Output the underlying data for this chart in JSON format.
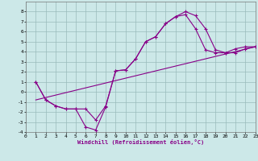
{
  "xlabel": "Windchill (Refroidissement éolien,°C)",
  "xlim": [
    0,
    23
  ],
  "ylim": [
    -4,
    9
  ],
  "xticks": [
    0,
    1,
    2,
    3,
    4,
    5,
    6,
    7,
    8,
    9,
    10,
    11,
    12,
    13,
    14,
    15,
    16,
    17,
    18,
    19,
    20,
    21,
    22,
    23
  ],
  "yticks": [
    -4,
    -3,
    -2,
    -1,
    0,
    1,
    2,
    3,
    4,
    5,
    6,
    7,
    8
  ],
  "bg_color": "#cce8e8",
  "line_color": "#880088",
  "line1_x": [
    1,
    2,
    3,
    4,
    5,
    6,
    7,
    8,
    9,
    10,
    11,
    12,
    13,
    14,
    15,
    16,
    17,
    18,
    19,
    20,
    21,
    22,
    23
  ],
  "line1_y": [
    1.0,
    -0.8,
    -1.4,
    -1.7,
    -1.7,
    -3.5,
    -3.8,
    -1.5,
    2.1,
    2.2,
    3.3,
    5.0,
    5.5,
    6.8,
    7.5,
    8.0,
    7.6,
    6.3,
    4.2,
    3.9,
    3.9,
    4.3,
    4.5
  ],
  "line2_x": [
    1,
    2,
    3,
    4,
    5,
    6,
    7,
    8,
    9,
    10,
    11,
    12,
    13,
    14,
    15,
    16,
    17,
    18,
    19,
    20,
    21,
    22,
    23
  ],
  "line2_y": [
    1.0,
    -0.8,
    -1.4,
    -1.7,
    -1.7,
    -1.7,
    -2.8,
    -1.4,
    2.1,
    2.2,
    3.3,
    5.0,
    5.5,
    6.8,
    7.5,
    7.7,
    6.3,
    4.2,
    3.9,
    3.9,
    4.3,
    4.5,
    4.5
  ],
  "line3_x": [
    1,
    23
  ],
  "line3_y": [
    -0.8,
    4.5
  ],
  "grid_color": "#99bbbb",
  "marker": "+"
}
